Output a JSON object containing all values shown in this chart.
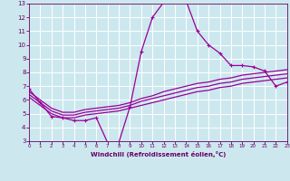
{
  "background_color": "#cce8ee",
  "line_color": "#990099",
  "grid_color": "#ffffff",
  "xlabel": "Windchill (Refroidissement éolien,°C)",
  "xlabel_color": "#660066",
  "tick_color": "#660066",
  "axis_color": "#660066",
  "xmin": 0,
  "xmax": 23,
  "ymin": 3,
  "ymax": 13,
  "xticks": [
    0,
    1,
    2,
    3,
    4,
    5,
    6,
    7,
    8,
    9,
    10,
    11,
    12,
    13,
    14,
    15,
    16,
    17,
    18,
    19,
    20,
    21,
    22,
    23
  ],
  "yticks": [
    3,
    4,
    5,
    6,
    7,
    8,
    9,
    10,
    11,
    12,
    13
  ],
  "lines": [
    {
      "x": [
        0,
        1,
        2,
        3,
        4,
        5,
        6,
        7,
        8,
        9,
        10,
        11,
        12,
        13,
        14,
        15,
        16,
        17,
        18,
        19,
        20,
        21,
        22,
        23
      ],
      "y": [
        6.8,
        5.8,
        4.8,
        4.7,
        4.5,
        4.5,
        4.7,
        2.9,
        2.9,
        5.5,
        9.5,
        12.0,
        13.1,
        13.2,
        13.2,
        11.0,
        10.0,
        9.4,
        8.5,
        8.5,
        8.4,
        8.1,
        7.0,
        7.3
      ],
      "marker": true
    },
    {
      "x": [
        0,
        1,
        2,
        3,
        4,
        5,
        6,
        7,
        8,
        9,
        10,
        11,
        12,
        13,
        14,
        15,
        16,
        17,
        18,
        19,
        20,
        21,
        22,
        23
      ],
      "y": [
        6.6,
        6.0,
        5.4,
        5.1,
        5.1,
        5.3,
        5.4,
        5.5,
        5.6,
        5.8,
        6.1,
        6.3,
        6.6,
        6.8,
        7.0,
        7.2,
        7.3,
        7.5,
        7.6,
        7.8,
        7.9,
        8.0,
        8.1,
        8.2
      ],
      "marker": false
    },
    {
      "x": [
        0,
        1,
        2,
        3,
        4,
        5,
        6,
        7,
        8,
        9,
        10,
        11,
        12,
        13,
        14,
        15,
        16,
        17,
        18,
        19,
        20,
        21,
        22,
        23
      ],
      "y": [
        6.4,
        5.8,
        5.2,
        4.9,
        4.9,
        5.1,
        5.2,
        5.3,
        5.4,
        5.6,
        5.9,
        6.1,
        6.3,
        6.5,
        6.7,
        6.9,
        7.0,
        7.2,
        7.3,
        7.5,
        7.6,
        7.7,
        7.8,
        7.9
      ],
      "marker": false
    },
    {
      "x": [
        0,
        1,
        2,
        3,
        4,
        5,
        6,
        7,
        8,
        9,
        10,
        11,
        12,
        13,
        14,
        15,
        16,
        17,
        18,
        19,
        20,
        21,
        22,
        23
      ],
      "y": [
        6.2,
        5.6,
        5.0,
        4.7,
        4.7,
        4.9,
        5.0,
        5.1,
        5.2,
        5.4,
        5.6,
        5.8,
        6.0,
        6.2,
        6.4,
        6.6,
        6.7,
        6.9,
        7.0,
        7.2,
        7.3,
        7.4,
        7.5,
        7.6
      ],
      "marker": false
    }
  ]
}
